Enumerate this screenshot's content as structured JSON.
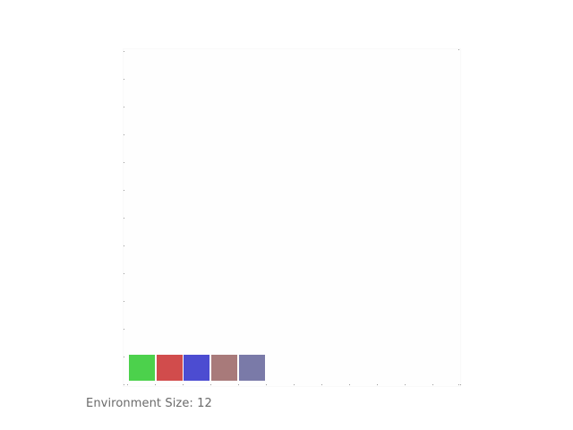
{
  "environment": {
    "size_label": "Environment Size:",
    "size_value": "12",
    "grid_size": 12
  },
  "blocks": [
    {
      "column": 0,
      "row": 0,
      "color": "#4cd14c",
      "name": "green-block"
    },
    {
      "column": 1,
      "row": 0,
      "color": "#d14c4c",
      "name": "red-block"
    },
    {
      "column": 2,
      "row": 0,
      "color": "#4c4cd1",
      "name": "blue-block"
    },
    {
      "column": 3,
      "row": 0,
      "color": "#a87a7a",
      "name": "mauve-block"
    },
    {
      "column": 4,
      "row": 0,
      "color": "#7a7aa8",
      "name": "slate-block"
    }
  ],
  "colors": {
    "grid_dot": "#9a9a9a",
    "board_background": "#fefefe",
    "label_text": "#6a6a6a"
  }
}
